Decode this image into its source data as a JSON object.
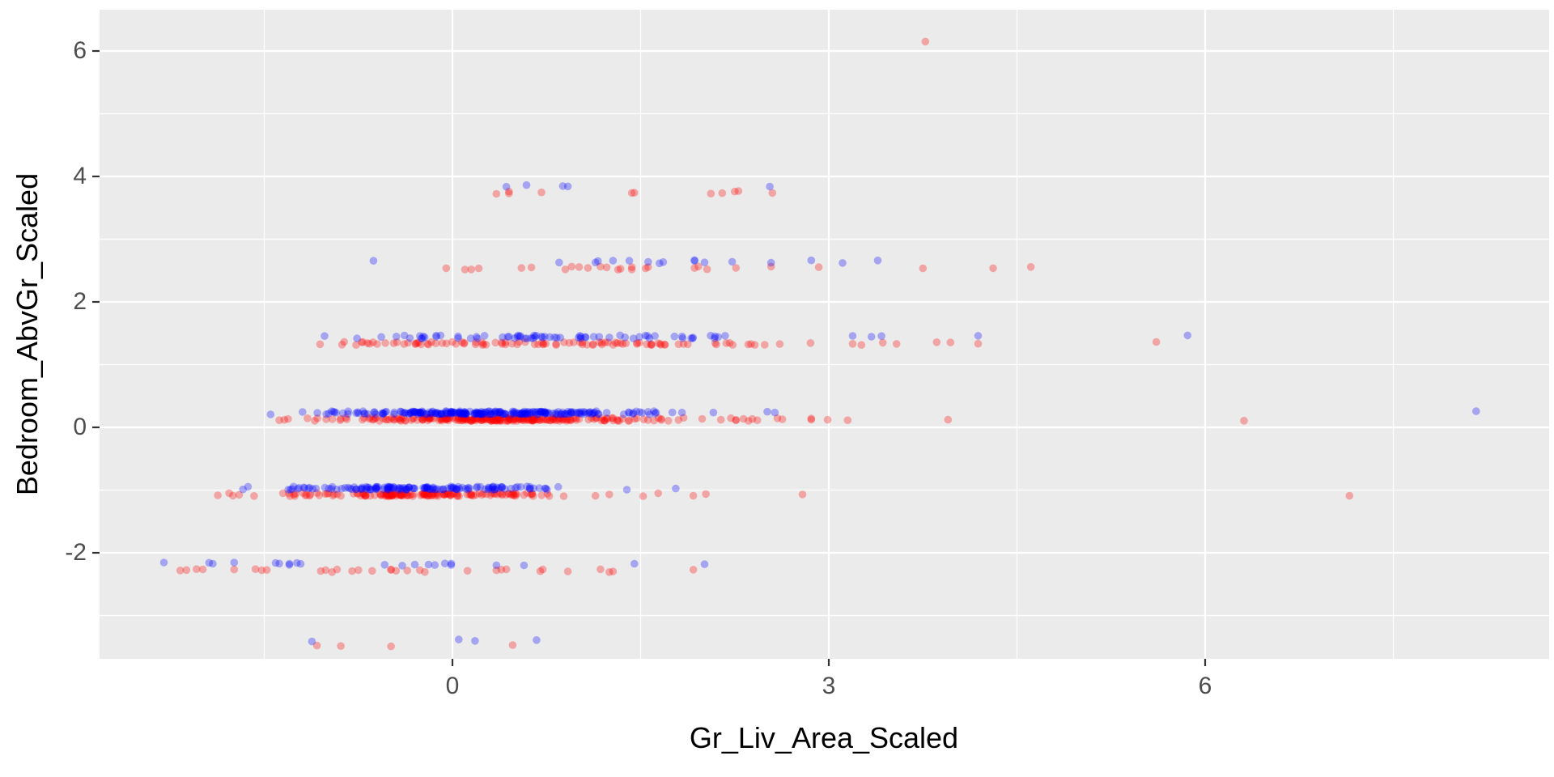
{
  "chart_data": {
    "type": "scatter",
    "title": "",
    "x_axis": {
      "label": "Gr_Liv_Area_Scaled",
      "major_ticks": [
        0,
        3,
        6
      ],
      "minor_ticks": [
        -1.5,
        1.5,
        4.5,
        7.5
      ],
      "range": [
        -2.81,
        8.75
      ]
    },
    "y_axis": {
      "label": "Bedroom_AbvGr_Scaled",
      "major_ticks": [
        6,
        4,
        2,
        0,
        -2
      ],
      "minor_ticks": [
        5,
        3,
        1,
        -1,
        -3
      ],
      "range": [
        -3.69,
        6.66
      ]
    },
    "legend": "none",
    "grid": "on",
    "colors": {
      "red": "#FF0000",
      "blue": "#0000FF",
      "panel_background": "#EBEBEB",
      "gridline": "#FFFFFF",
      "outer_background": "#FFFFFF",
      "tick_text": "#4D4D4D",
      "title_text": "#000000",
      "tick_mark": "#333333"
    },
    "point_alpha": 0.3,
    "bands": [
      {
        "y": 6.21,
        "red": [
          3.77
        ],
        "blue": []
      },
      {
        "y": 3.8,
        "red": [
          0.35,
          0.45,
          0.45,
          0.71,
          1.43,
          1.45,
          2.06,
          2.15,
          2.25,
          2.28,
          2.55
        ],
        "blue": [
          0.43,
          0.59,
          0.88,
          0.92,
          2.53
        ]
      },
      {
        "y": 2.59,
        "red": [
          -0.05,
          0.1,
          0.15,
          0.21,
          0.55,
          0.63,
          0.9,
          0.95,
          1.01,
          1.08,
          1.18,
          1.23,
          1.32,
          1.34,
          1.43,
          1.43,
          1.54,
          1.56,
          1.93,
          1.96,
          2.03,
          2.26,
          2.54,
          2.92,
          3.75,
          4.31,
          4.61
        ],
        "blue": [
          -0.63,
          0.85,
          1.14,
          1.16,
          1.28,
          1.41,
          1.56,
          1.65,
          1.68,
          1.93,
          1.93,
          2.01,
          2.23,
          2.54,
          2.86,
          3.11,
          3.39
        ]
      },
      {
        "y": 1.39,
        "red": [
          3.19,
          3.26,
          3.43,
          3.54,
          3.86,
          3.97,
          4.19,
          5.61
        ],
        "blue": [
          3.19,
          3.34,
          3.42,
          4.19,
          5.86
        ],
        "red_gen": {
          "range": [
            -1.52,
            2.9
          ],
          "count": 100
        },
        "blue_gen": {
          "range": [
            -1.35,
            2.6
          ],
          "count": 70
        }
      },
      {
        "y": 0.18,
        "red": [
          -1.38,
          -1.34,
          -1.31,
          1.99,
          2.14,
          2.22,
          2.26,
          2.26,
          2.32,
          2.36,
          2.39,
          2.43,
          2.59,
          2.63,
          2.86,
          2.86,
          2.99,
          3.15,
          3.95,
          6.31
        ],
        "blue": [
          -1.45,
          2.08,
          2.51,
          2.57,
          8.16
        ],
        "red_gen": {
          "range": [
            -1.28,
            1.95
          ],
          "count": 240
        },
        "blue_gen": {
          "range": [
            -1.42,
            1.9
          ],
          "count": 250
        }
      },
      {
        "y": -1.02,
        "red": [
          -1.87,
          -1.78,
          -1.75,
          -1.7,
          1.14,
          1.25,
          1.52,
          1.64,
          1.92,
          2.02,
          2.79,
          7.15
        ],
        "blue": [
          -1.67,
          -1.63,
          1.39,
          1.78
        ],
        "red_gen": {
          "range": [
            -1.62,
            1.1
          ],
          "count": 150
        },
        "blue_gen": {
          "range": [
            -1.58,
            1.05
          ],
          "count": 140
        }
      },
      {
        "y": -2.23,
        "red": [
          -2.17,
          -2.12,
          -2.04,
          -1.99,
          -1.74,
          -1.57,
          -1.52,
          -1.48,
          -1.05,
          -1.01,
          -0.96,
          -0.92,
          -0.8,
          -0.75,
          -0.64,
          -0.49,
          -0.49,
          -0.45,
          -0.36,
          -0.26,
          -0.22,
          0.12,
          0.35,
          0.39,
          0.43,
          0.7,
          0.72,
          0.92,
          1.18,
          1.25,
          1.28,
          1.92
        ],
        "blue": [
          -2.3,
          -1.94,
          -1.91,
          -1.74,
          -1.41,
          -1.38,
          -1.3,
          -1.3,
          -1.24,
          -1.21,
          -0.54,
          -0.4,
          -0.3,
          -0.19,
          -0.14,
          -0.06,
          -0.01,
          -0.01,
          0.35,
          0.57,
          1.45,
          2.01
        ]
      },
      {
        "y": -3.44,
        "red": [
          -1.08,
          -0.89,
          -0.49,
          0.48
        ],
        "blue": [
          -1.12,
          0.05,
          0.18,
          0.67
        ]
      }
    ]
  }
}
